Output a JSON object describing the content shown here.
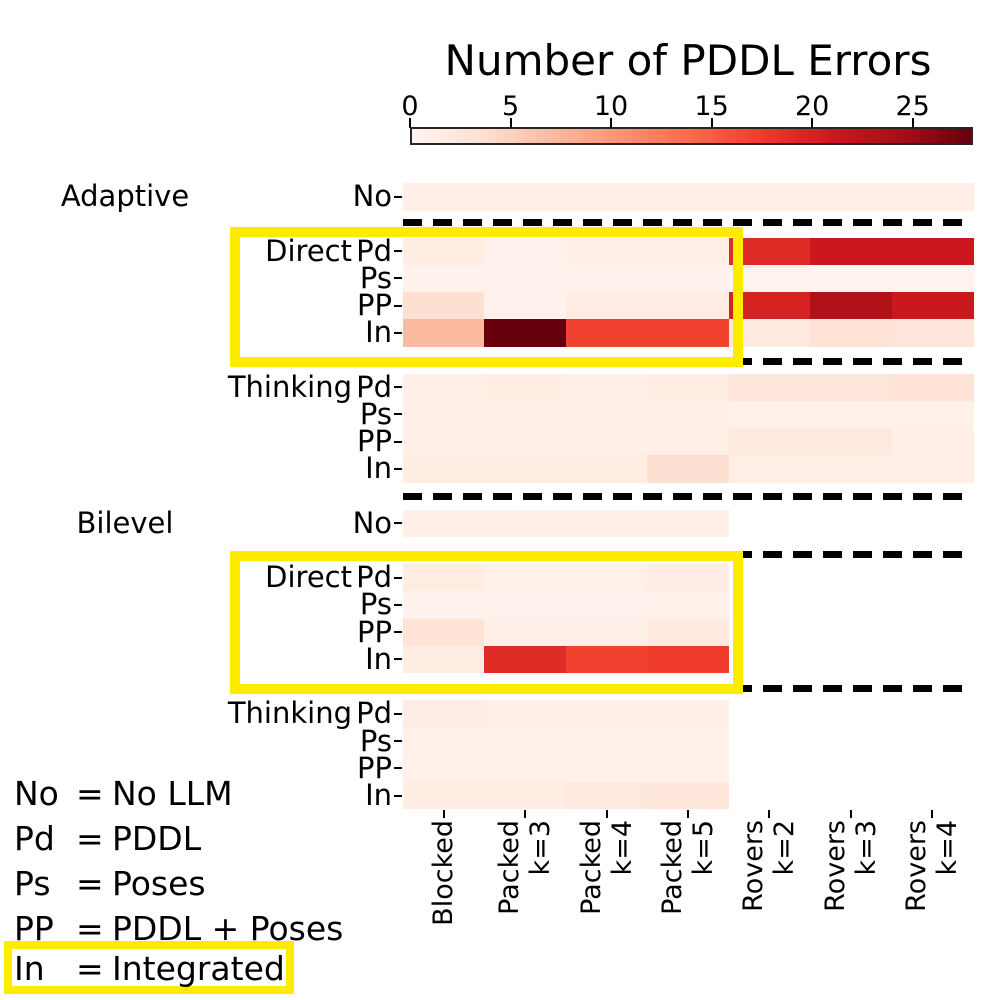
{
  "title": "Number of PDDL Errors",
  "colorbar": {
    "tick_labels": [
      "0",
      "5",
      "10",
      "15",
      "20",
      "25"
    ],
    "vmin": 0,
    "vmax": 28
  },
  "accent_yellow": "#ffeb00",
  "chart_data": {
    "type": "heatmap",
    "title": "Number of PDDL Errors",
    "colormap": "Reds",
    "vmin": 0,
    "vmax": 28,
    "legend_position": "bottom-left",
    "grid": false,
    "columns": [
      "Blocked",
      "Packed k=3",
      "Packed k=4",
      "Packed k=5",
      "Rovers k=2",
      "Rovers k=3",
      "Rovers k=4"
    ],
    "groups": [
      {
        "label": "Adaptive",
        "sections": [
          {
            "label": "",
            "highlighted": false,
            "rows": [
              {
                "label": "No",
                "values": [
                  1,
                  1,
                  1,
                  1,
                  1,
                  1,
                  1
                ]
              }
            ]
          },
          {
            "label": "Direct",
            "highlighted": true,
            "rows": [
              {
                "label": "Pd",
                "values": [
                  1.5,
                  0.5,
                  1,
                  1,
                  19,
                  21,
                  21
                ]
              },
              {
                "label": "Ps",
                "values": [
                  0.5,
                  0.5,
                  0.5,
                  0.5,
                  0.3,
                  0.3,
                  0.3
                ]
              },
              {
                "label": "PP",
                "values": [
                  3.5,
                  0.5,
                  1.5,
                  1.5,
                  20,
                  23.5,
                  21
                ]
              },
              {
                "label": "In",
                "values": [
                  7,
                  28,
                  17,
                  17,
                  2,
                  3,
                  2.5
                ]
              }
            ]
          },
          {
            "label": "Thinking",
            "highlighted": false,
            "rows": [
              {
                "label": "Pd",
                "values": [
                  1,
                  1.5,
                  1,
                  1.5,
                  2.5,
                  2.5,
                  3
                ]
              },
              {
                "label": "Ps",
                "values": [
                  1,
                  1,
                  1,
                  1,
                  0.8,
                  0.8,
                  0.8
                ]
              },
              {
                "label": "PP",
                "values": [
                  1,
                  1,
                  1,
                  1,
                  2,
                  2,
                  1
                ]
              },
              {
                "label": "In",
                "values": [
                  1.5,
                  1.5,
                  1.5,
                  3.5,
                  1,
                  1,
                  1
                ]
              }
            ]
          }
        ]
      },
      {
        "label": "Bilevel",
        "sections": [
          {
            "label": "",
            "highlighted": false,
            "rows": [
              {
                "label": "No",
                "values": [
                  1,
                  1,
                  1,
                  1,
                  null,
                  null,
                  null
                ]
              }
            ]
          },
          {
            "label": "Direct",
            "highlighted": true,
            "rows": [
              {
                "label": "Pd",
                "values": [
                  1.5,
                  0.8,
                  0.8,
                  1.3,
                  null,
                  null,
                  null
                ]
              },
              {
                "label": "Ps",
                "values": [
                  0.5,
                  0.5,
                  0.5,
                  0.8,
                  null,
                  null,
                  null
                ]
              },
              {
                "label": "PP",
                "values": [
                  3,
                  1,
                  1,
                  2,
                  null,
                  null,
                  null
                ]
              },
              {
                "label": "In",
                "values": [
                  1.5,
                  19,
                  17,
                  17.5,
                  null,
                  null,
                  null
                ]
              }
            ]
          },
          {
            "label": "Thinking",
            "highlighted": false,
            "rows": [
              {
                "label": "Pd",
                "values": [
                  1.3,
                  1,
                  1,
                  1,
                  null,
                  null,
                  null
                ]
              },
              {
                "label": "Ps",
                "values": [
                  0.8,
                  0.8,
                  0.8,
                  0.8,
                  null,
                  null,
                  null
                ]
              },
              {
                "label": "PP",
                "values": [
                  0.8,
                  0.8,
                  0.8,
                  0.8,
                  null,
                  null,
                  null
                ]
              },
              {
                "label": "In",
                "values": [
                  1.5,
                  1.5,
                  2,
                  2.5,
                  null,
                  null,
                  null
                ]
              }
            ]
          }
        ]
      }
    ]
  },
  "legend": {
    "items": [
      {
        "abbr": "No",
        "eq": "=",
        "meaning": "No LLM",
        "highlighted": false
      },
      {
        "abbr": "Pd",
        "eq": "=",
        "meaning": "PDDL",
        "highlighted": false
      },
      {
        "abbr": "Ps",
        "eq": "=",
        "meaning": "Poses",
        "highlighted": false
      },
      {
        "abbr": "PP",
        "eq": "=",
        "meaning": "PDDL + Poses",
        "highlighted": false
      },
      {
        "abbr": "In",
        "eq": "=",
        "meaning": "Integrated",
        "highlighted": true
      }
    ]
  }
}
